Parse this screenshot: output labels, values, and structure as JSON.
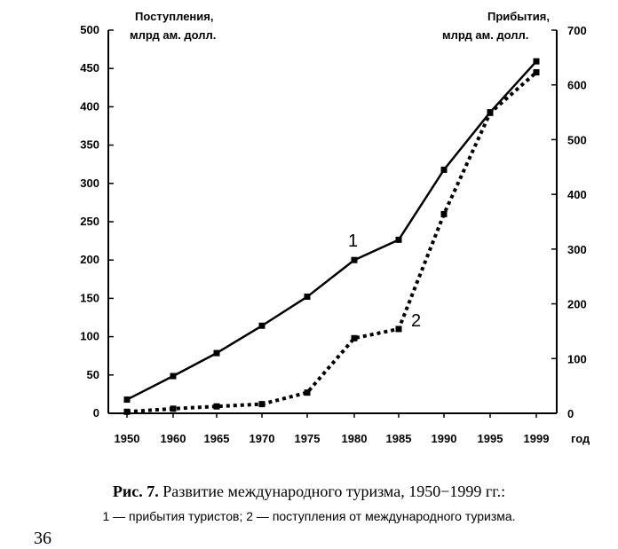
{
  "chart_data": {
    "type": "line",
    "x": [
      "1950",
      "1960",
      "1965",
      "1970",
      "1975",
      "1980",
      "1985",
      "1990",
      "1995",
      "1999"
    ],
    "x_unit_label": "год",
    "left_axis": {
      "title_line1": "Поступления,",
      "title_line2": "млрд ам. долл.",
      "range": [
        0,
        500
      ],
      "ticks": [
        0,
        50,
        100,
        150,
        200,
        250,
        300,
        350,
        400,
        450,
        500
      ]
    },
    "right_axis": {
      "title_line1": "Прибытия,",
      "title_line2": "млрд ам. долл.",
      "range": [
        0,
        700
      ],
      "ticks": [
        0,
        100,
        200,
        300,
        400,
        500,
        600,
        700
      ]
    },
    "series": [
      {
        "name": "1",
        "axis": "right",
        "style": "solid",
        "values": [
          25,
          68,
          110,
          160,
          213,
          280,
          317,
          445,
          550,
          643
        ]
      },
      {
        "name": "2",
        "axis": "left",
        "style": "dotted",
        "values": [
          2,
          6,
          9,
          12,
          27,
          98,
          110,
          260,
          392,
          445
        ]
      }
    ],
    "grid": false,
    "legend": "none"
  },
  "caption": {
    "figure_label": "Рис. 7.",
    "title": "Развитие международного туризма, 1950−1999 гг.:",
    "legend_text": "1 — прибытия туристов; 2 — поступления от международного туризма."
  },
  "page_number": "36"
}
